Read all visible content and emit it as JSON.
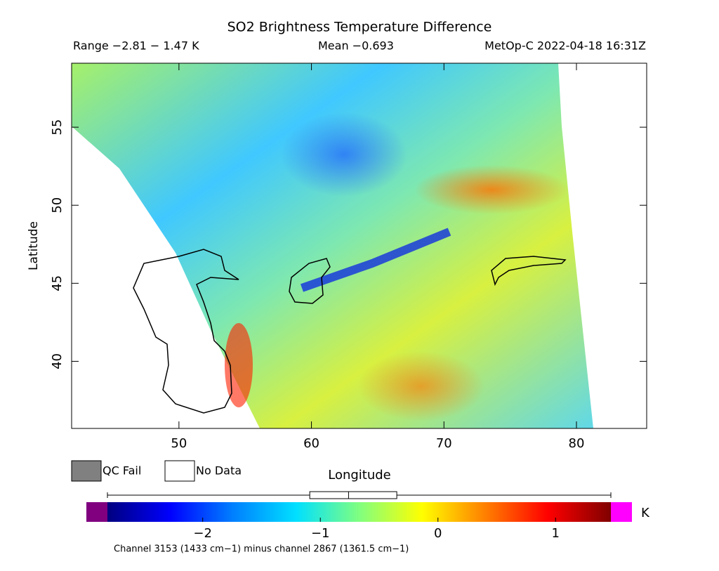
{
  "chart_data": {
    "type": "heatmap",
    "title": "SO2 Brightness Temperature Difference",
    "range_text": "Range −2.81 − 1.47 K",
    "mean_text": "Mean −0.693",
    "source_text": "MetOp-C 2022-04-18 16:31Z",
    "xlabel": "Longitude",
    "ylabel": "Latitude",
    "xlim": [
      41.9,
      85.3
    ],
    "ylim": [
      35.7,
      59.1
    ],
    "xticks": [
      50,
      60,
      70,
      80
    ],
    "yticks": [
      40,
      45,
      50,
      55
    ],
    "legend": [
      "QC Fail",
      "No Data"
    ],
    "legend_colors": [
      "#808080",
      "#ffffff"
    ],
    "colorbar": {
      "clim": [
        -2.81,
        1.47
      ],
      "ticks": [
        {
          "value": -2,
          "label": "−2"
        },
        {
          "value": -1,
          "label": "−1"
        },
        0,
        1
      ],
      "unit": "K",
      "colors": [
        "#000080",
        "#0000ff",
        "#0080ff",
        "#00e0ff",
        "#80ff80",
        "#ffff00",
        "#ff8000",
        "#ff0000",
        "#800000"
      ],
      "under_color": "#800080",
      "over_color": "#ff00ff"
    },
    "boxplot": {
      "min": -2.81,
      "q1": -1.09,
      "median": -0.76,
      "q3": -0.35,
      "max": 1.47
    },
    "footnote": "Channel 3153 (1433 cm−1) minus channel 2867 (1361.5 cm−1)"
  }
}
